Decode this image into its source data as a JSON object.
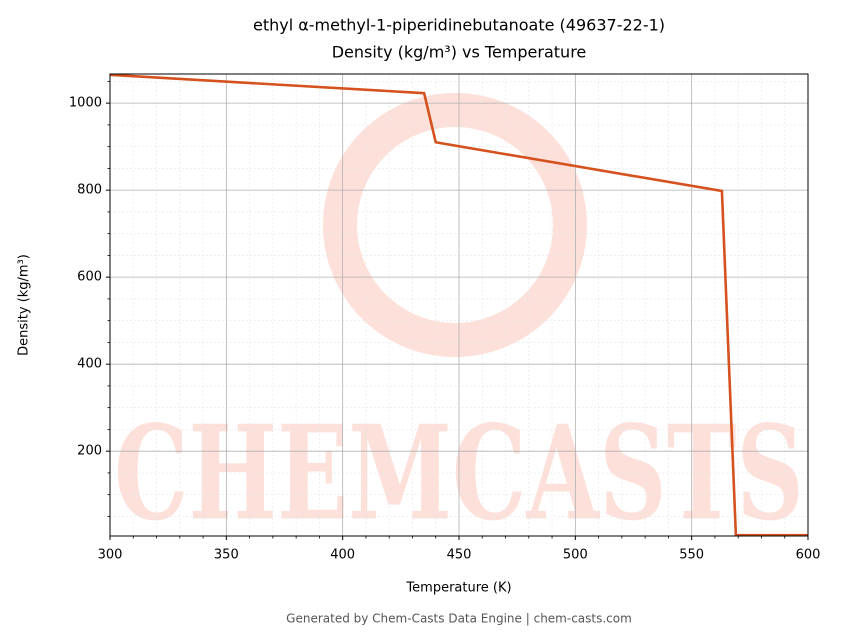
{
  "chart_data": {
    "type": "line",
    "title": "ethyl α-methyl-1-piperidinebutanoate (49637-22-1)",
    "subtitle": "Density (kg/m³) vs Temperature",
    "x_label": "Temperature (K)",
    "y_label": "Density (kg/m³)",
    "watermark": "CHEMCASTS",
    "footer": "Generated by Chem-Casts Data Engine | chem-casts.com",
    "x": [
      300,
      435,
      440,
      563,
      569,
      600
    ],
    "values": [
      1065,
      1023,
      910,
      798,
      7,
      7
    ],
    "color": "#d5521e",
    "xlim": [
      300,
      600
    ],
    "ylim": [
      5,
      1067
    ],
    "xticks": [
      300,
      350,
      400,
      450,
      500,
      550,
      600
    ],
    "yticks": [
      200,
      400,
      600,
      800,
      1000
    ],
    "minor_xticks": [
      310,
      320,
      330,
      340,
      360,
      370,
      380,
      390,
      410,
      420,
      430,
      440,
      460,
      470,
      480,
      490,
      510,
      520,
      530,
      540,
      560,
      570,
      580,
      590
    ],
    "minor_yticks": [
      50,
      100,
      150,
      250,
      300,
      350,
      450,
      500,
      550,
      650,
      700,
      750,
      850,
      900,
      950,
      1050
    ],
    "grid": true
  }
}
